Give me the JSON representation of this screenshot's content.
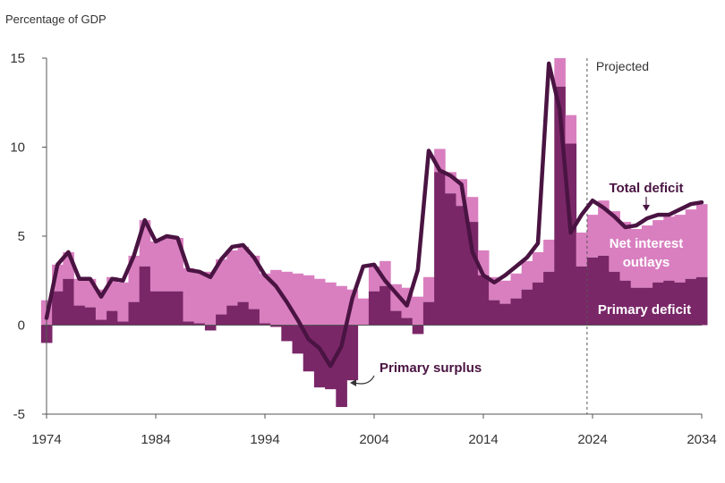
{
  "chart_data": {
    "type": "bar",
    "title": "",
    "ylabel": "Percentage of GDP",
    "xlabel": "",
    "ylim": [
      -5,
      15
    ],
    "xlim": [
      1974,
      2034
    ],
    "yticks": [
      -5,
      0,
      5,
      10,
      15
    ],
    "xticks": [
      1974,
      1984,
      1994,
      2004,
      2014,
      2024,
      2034
    ],
    "projection_start": 2024,
    "projection_label": "Projected",
    "grid": false,
    "colors": {
      "net_interest": "#d97fc0",
      "primary_deficit": "#7a2768",
      "total_line": "#4a1442"
    },
    "years": [
      1974,
      1975,
      1976,
      1977,
      1978,
      1979,
      1980,
      1981,
      1982,
      1983,
      1984,
      1985,
      1986,
      1987,
      1988,
      1989,
      1990,
      1991,
      1992,
      1993,
      1994,
      1995,
      1996,
      1997,
      1998,
      1999,
      2000,
      2001,
      2002,
      2003,
      2004,
      2005,
      2006,
      2007,
      2008,
      2009,
      2010,
      2011,
      2012,
      2013,
      2014,
      2015,
      2016,
      2017,
      2018,
      2019,
      2020,
      2021,
      2022,
      2023,
      2024,
      2025,
      2026,
      2027,
      2028,
      2029,
      2030,
      2031,
      2032,
      2033,
      2034
    ],
    "series": [
      {
        "name": "Primary deficit",
        "values": [
          -1.0,
          1.9,
          2.6,
          1.1,
          1.0,
          0.3,
          0.8,
          0.2,
          1.3,
          3.3,
          1.9,
          1.9,
          1.9,
          0.2,
          0.1,
          -0.3,
          0.6,
          1.1,
          1.3,
          0.9,
          0.1,
          -0.1,
          -0.9,
          -1.6,
          -2.6,
          -3.5,
          -3.6,
          -4.6,
          -3.1,
          0.0,
          1.9,
          2.2,
          0.8,
          0.4,
          -0.5,
          1.3,
          8.6,
          7.4,
          6.7,
          5.8,
          2.8,
          1.4,
          1.2,
          1.5,
          2.0,
          2.4,
          3.0,
          13.4,
          10.2,
          3.3,
          3.8,
          3.9,
          3.0,
          2.5,
          2.1,
          2.1,
          2.4,
          2.5,
          2.4,
          2.6,
          2.7
        ]
      },
      {
        "name": "Net interest outlays",
        "values": [
          1.4,
          1.5,
          1.5,
          1.5,
          1.6,
          1.7,
          1.9,
          2.2,
          2.6,
          2.6,
          2.8,
          3.0,
          3.0,
          3.0,
          2.9,
          3.0,
          3.1,
          3.1,
          3.1,
          3.0,
          2.8,
          3.1,
          3.0,
          2.9,
          2.8,
          2.6,
          2.4,
          2.2,
          2.0,
          1.5,
          1.4,
          1.4,
          1.5,
          1.7,
          1.6,
          1.4,
          1.3,
          1.2,
          1.5,
          1.4,
          1.4,
          1.3,
          1.3,
          1.4,
          1.6,
          1.7,
          1.8,
          1.6,
          1.6,
          1.9,
          2.4,
          3.1,
          3.4,
          3.3,
          3.3,
          3.5,
          3.5,
          3.6,
          3.8,
          3.9,
          4.1
        ]
      },
      {
        "name": "Total deficit",
        "values": [
          0.4,
          3.4,
          4.1,
          2.6,
          2.6,
          1.6,
          2.6,
          2.5,
          3.9,
          5.9,
          4.7,
          5.0,
          4.9,
          3.1,
          3.0,
          2.7,
          3.7,
          4.4,
          4.5,
          3.8,
          2.8,
          2.2,
          1.3,
          0.3,
          -0.8,
          -1.3,
          -2.3,
          -1.2,
          1.5,
          3.3,
          3.4,
          2.5,
          1.8,
          1.1,
          3.1,
          9.8,
          8.7,
          8.4,
          7.9,
          4.1,
          2.8,
          2.4,
          2.8,
          3.3,
          3.8,
          4.6,
          14.7,
          12.1,
          5.2,
          6.2,
          7.0,
          6.6,
          6.1,
          5.5,
          5.6,
          6.0,
          6.2,
          6.2,
          6.5,
          6.8,
          6.9
        ]
      }
    ],
    "annotations": {
      "total_deficit": "Total deficit",
      "net_interest_line1": "Net interest",
      "net_interest_line2": "outlays",
      "primary_deficit": "Primary deficit",
      "primary_surplus": "Primary surplus"
    }
  }
}
